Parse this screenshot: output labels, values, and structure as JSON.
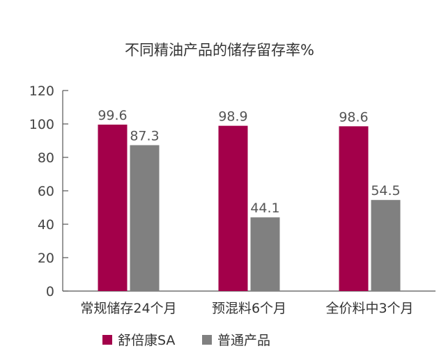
{
  "chart_data": {
    "type": "bar",
    "title": "不同精油产品的储存留存率%",
    "categories": [
      "常规储存24个月",
      "预混料6个月",
      "全价料中3个月"
    ],
    "series": [
      {
        "name": "舒倍康SA",
        "values": [
          99.6,
          98.9,
          98.6
        ],
        "color": "#a3004a"
      },
      {
        "name": "普通产品",
        "values": [
          87.3,
          44.1,
          54.5
        ],
        "color": "#808080"
      }
    ],
    "ylim": [
      0,
      120
    ],
    "yticks": [
      0,
      20,
      40,
      60,
      80,
      100,
      120
    ],
    "grid": false,
    "legend": "bottom-left"
  }
}
